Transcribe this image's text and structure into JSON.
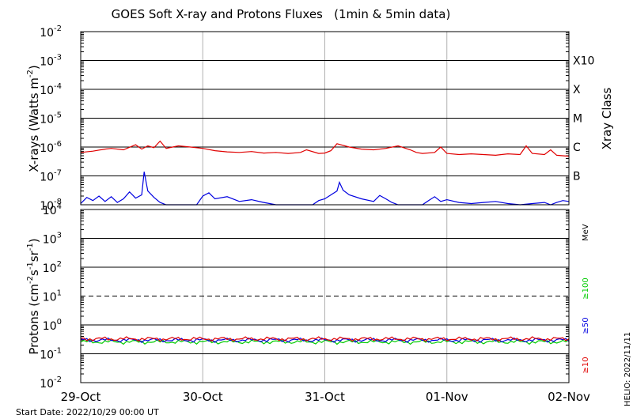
{
  "chart_data": [
    {
      "type": "line",
      "title": "GOES Soft X-ray and Protons Fluxes   (1min & 5min data)",
      "ylabel": "X-rays (Watts m-2)",
      "yscale": "log",
      "ylim": [
        1e-08,
        0.01
      ],
      "ytick_exponents": [
        -2,
        -3,
        -4,
        -5,
        -6,
        -7,
        -8
      ],
      "right_axis_label": "Xray Class",
      "xray_classes": [
        {
          "label": "X10",
          "flux": 0.001
        },
        {
          "label": "X",
          "flux": 0.0001
        },
        {
          "label": "M",
          "flux": 1e-05
        },
        {
          "label": "C",
          "flux": 1e-06
        },
        {
          "label": "B",
          "flux": 1e-07
        }
      ],
      "x_dates": [
        "29-Oct",
        "30-Oct",
        "31-Oct",
        "01-Nov",
        "02-Nov"
      ],
      "xlim_days": [
        0,
        4
      ],
      "grid": true,
      "series": [
        {
          "color": "#e00000",
          "points": [
            [
              0,
              6.5e-07
            ],
            [
              0.1,
              7.2e-07
            ],
            [
              0.2,
              8.5e-07
            ],
            [
              0.25,
              9e-07
            ],
            [
              0.35,
              8e-07
            ],
            [
              0.45,
              1.2e-06
            ],
            [
              0.5,
              8.5e-07
            ],
            [
              0.55,
              1.1e-06
            ],
            [
              0.6,
              9.5e-07
            ],
            [
              0.65,
              1.6e-06
            ],
            [
              0.7,
              9e-07
            ],
            [
              0.8,
              1.1e-06
            ],
            [
              0.9,
              1e-06
            ],
            [
              1.0,
              9e-07
            ],
            [
              1.1,
              7.5e-07
            ],
            [
              1.2,
              6.8e-07
            ],
            [
              1.3,
              6.5e-07
            ],
            [
              1.4,
              7e-07
            ],
            [
              1.5,
              6.2e-07
            ],
            [
              1.6,
              6.5e-07
            ],
            [
              1.7,
              6e-07
            ],
            [
              1.8,
              6.5e-07
            ],
            [
              1.85,
              8e-07
            ],
            [
              1.95,
              6e-07
            ],
            [
              2.0,
              6.2e-07
            ],
            [
              2.05,
              7.5e-07
            ],
            [
              2.1,
              1.3e-06
            ],
            [
              2.2,
              1e-06
            ],
            [
              2.3,
              8.5e-07
            ],
            [
              2.4,
              8e-07
            ],
            [
              2.5,
              9e-07
            ],
            [
              2.6,
              1.1e-06
            ],
            [
              2.7,
              8e-07
            ],
            [
              2.75,
              6.5e-07
            ],
            [
              2.8,
              6e-07
            ],
            [
              2.9,
              6.5e-07
            ],
            [
              2.95,
              1e-06
            ],
            [
              3.0,
              6e-07
            ],
            [
              3.1,
              5.5e-07
            ],
            [
              3.2,
              5.8e-07
            ],
            [
              3.3,
              5.5e-07
            ],
            [
              3.4,
              5.2e-07
            ],
            [
              3.5,
              5.8e-07
            ],
            [
              3.6,
              5.5e-07
            ],
            [
              3.65,
              1.1e-06
            ],
            [
              3.7,
              6e-07
            ],
            [
              3.8,
              5.5e-07
            ],
            [
              3.85,
              8e-07
            ],
            [
              3.9,
              5.2e-07
            ],
            [
              4.0,
              4.8e-07
            ]
          ]
        },
        {
          "color": "#0000e0",
          "points": [
            [
              0,
              1.1e-08
            ],
            [
              0.05,
              1.8e-08
            ],
            [
              0.1,
              1.4e-08
            ],
            [
              0.15,
              2e-08
            ],
            [
              0.2,
              1.3e-08
            ],
            [
              0.25,
              1.9e-08
            ],
            [
              0.3,
              1.2e-08
            ],
            [
              0.35,
              1.6e-08
            ],
            [
              0.4,
              2.8e-08
            ],
            [
              0.45,
              1.7e-08
            ],
            [
              0.5,
              2.2e-08
            ],
            [
              0.52,
              1.4e-07
            ],
            [
              0.55,
              3e-08
            ],
            [
              0.6,
              1.8e-08
            ],
            [
              0.65,
              1.2e-08
            ],
            [
              0.7,
              1e-08
            ],
            [
              0.85,
              1e-08
            ],
            [
              0.95,
              1e-08
            ],
            [
              1.0,
              2e-08
            ],
            [
              1.05,
              2.6e-08
            ],
            [
              1.1,
              1.6e-08
            ],
            [
              1.2,
              1.9e-08
            ],
            [
              1.3,
              1.3e-08
            ],
            [
              1.4,
              1.5e-08
            ],
            [
              1.5,
              1.2e-08
            ],
            [
              1.6,
              1e-08
            ],
            [
              1.8,
              1e-08
            ],
            [
              1.9,
              1e-08
            ],
            [
              1.95,
              1.4e-08
            ],
            [
              2.0,
              1.6e-08
            ],
            [
              2.05,
              2.2e-08
            ],
            [
              2.1,
              3e-08
            ],
            [
              2.12,
              6e-08
            ],
            [
              2.15,
              3.2e-08
            ],
            [
              2.2,
              2.2e-08
            ],
            [
              2.3,
              1.6e-08
            ],
            [
              2.4,
              1.3e-08
            ],
            [
              2.45,
              2.1e-08
            ],
            [
              2.5,
              1.6e-08
            ],
            [
              2.55,
              1.2e-08
            ],
            [
              2.6,
              1e-08
            ],
            [
              2.8,
              1e-08
            ],
            [
              2.85,
              1.4e-08
            ],
            [
              2.9,
              1.9e-08
            ],
            [
              2.95,
              1.3e-08
            ],
            [
              3.0,
              1.5e-08
            ],
            [
              3.1,
              1.2e-08
            ],
            [
              3.2,
              1.1e-08
            ],
            [
              3.3,
              1.2e-08
            ],
            [
              3.4,
              1.3e-08
            ],
            [
              3.5,
              1.1e-08
            ],
            [
              3.6,
              1e-08
            ],
            [
              3.7,
              1.1e-08
            ],
            [
              3.8,
              1.2e-08
            ],
            [
              3.85,
              1e-08
            ],
            [
              3.9,
              1.2e-08
            ],
            [
              3.95,
              1.4e-08
            ],
            [
              4.0,
              1.3e-08
            ]
          ]
        }
      ]
    },
    {
      "type": "line",
      "ylabel": "Protons (cm-2s-1sr-1)",
      "yscale": "log",
      "ylim": [
        0.01,
        10000.0
      ],
      "ytick_exponents": [
        4,
        3,
        2,
        1,
        0,
        -1,
        -2
      ],
      "energy_unit": "MeV",
      "energy_channels": [
        {
          "label": "≥100",
          "color": "#00cc00"
        },
        {
          "label": "≥50",
          "color": "#0000e0"
        },
        {
          "label": "≥10",
          "color": "#e00000"
        }
      ],
      "threshold_flux": 10,
      "x_dates": [
        "29-Oct",
        "30-Oct",
        "31-Oct",
        "01-Nov",
        "02-Nov"
      ],
      "xlim_days": [
        0,
        4
      ],
      "grid": true,
      "series": [
        {
          "color": "#00cc00",
          "level": 0.26
        },
        {
          "color": "#0000e0",
          "level": 0.3
        },
        {
          "color": "#e00000",
          "level": 0.33
        }
      ]
    }
  ],
  "footer": {
    "start_date": "Start Date: 2022/10/29 00:00 UT",
    "stamp": "HELIO: 2022/11/11"
  }
}
